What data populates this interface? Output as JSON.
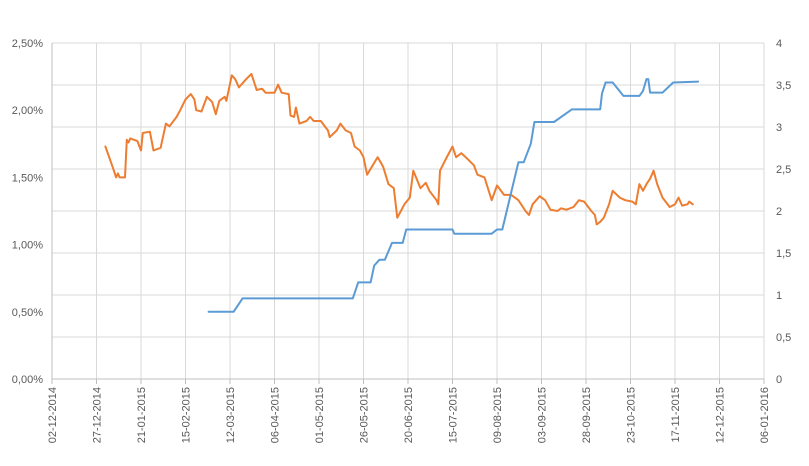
{
  "chart_data": {
    "type": "line",
    "title": "",
    "xlabel": "",
    "ylabel_left": "",
    "ylabel_right": "",
    "grid": true,
    "legend": "none",
    "x_range": [
      "2014-12-02",
      "2016-01-06"
    ],
    "y_left_range": [
      0,
      2.5
    ],
    "y_right_range": [
      0,
      4
    ],
    "x_ticks": [
      "02-12-2014",
      "27-12-2014",
      "21-01-2015",
      "15-02-2015",
      "12-03-2015",
      "06-04-2015",
      "01-05-2015",
      "26-05-2015",
      "20-06-2015",
      "15-07-2015",
      "09-08-2015",
      "03-09-2015",
      "28-09-2015",
      "23-10-2015",
      "17-11-2015",
      "12-12-2015",
      "06-01-2016"
    ],
    "y_left_ticks": [
      "0,00%",
      "0,50%",
      "1,00%",
      "1,50%",
      "2,00%",
      "2,50%"
    ],
    "y_left_tick_values": [
      0,
      0.5,
      1.0,
      1.5,
      2.0,
      2.5
    ],
    "y_right_ticks": [
      "0",
      "0,5",
      "1",
      "1,5",
      "2",
      "2,5",
      "3",
      "3,5",
      "4"
    ],
    "y_right_tick_values": [
      0,
      0.5,
      1,
      1.5,
      2,
      2.5,
      3,
      3.5,
      4
    ],
    "colors": {
      "orange": "#ED7D31",
      "blue": "#5B9BD5",
      "grid": "#D9D9D9",
      "axis": "#BFBFBF"
    },
    "series": [
      {
        "axis": "left",
        "color": "#ED7D31",
        "points": [
          [
            "2015-01-01",
            1.73
          ],
          [
            "2015-01-05",
            1.58
          ],
          [
            "2015-01-07",
            1.5
          ],
          [
            "2015-01-08",
            1.53
          ],
          [
            "2015-01-09",
            1.5
          ],
          [
            "2015-01-12",
            1.5
          ],
          [
            "2015-01-13",
            1.78
          ],
          [
            "2015-01-14",
            1.76
          ],
          [
            "2015-01-15",
            1.79
          ],
          [
            "2015-01-19",
            1.77
          ],
          [
            "2015-01-21",
            1.7
          ],
          [
            "2015-01-22",
            1.83
          ],
          [
            "2015-01-26",
            1.84
          ],
          [
            "2015-01-28",
            1.7
          ],
          [
            "2015-02-01",
            1.72
          ],
          [
            "2015-02-04",
            1.9
          ],
          [
            "2015-02-06",
            1.88
          ],
          [
            "2015-02-10",
            1.95
          ],
          [
            "2015-02-12",
            2.0
          ],
          [
            "2015-02-15",
            2.08
          ],
          [
            "2015-02-18",
            2.12
          ],
          [
            "2015-02-20",
            2.08
          ],
          [
            "2015-02-21",
            2.0
          ],
          [
            "2015-02-24",
            1.99
          ],
          [
            "2015-02-27",
            2.1
          ],
          [
            "2015-03-02",
            2.06
          ],
          [
            "2015-03-04",
            1.97
          ],
          [
            "2015-03-06",
            2.07
          ],
          [
            "2015-03-09",
            2.1
          ],
          [
            "2015-03-10",
            2.07
          ],
          [
            "2015-03-13",
            2.26
          ],
          [
            "2015-03-15",
            2.23
          ],
          [
            "2015-03-17",
            2.17
          ],
          [
            "2015-03-19",
            2.2
          ],
          [
            "2015-03-21",
            2.23
          ],
          [
            "2015-03-24",
            2.27
          ],
          [
            "2015-03-27",
            2.15
          ],
          [
            "2015-03-30",
            2.16
          ],
          [
            "2015-04-01",
            2.13
          ],
          [
            "2015-04-06",
            2.13
          ],
          [
            "2015-04-08",
            2.19
          ],
          [
            "2015-04-10",
            2.13
          ],
          [
            "2015-04-14",
            2.12
          ],
          [
            "2015-04-15",
            1.96
          ],
          [
            "2015-04-17",
            1.95
          ],
          [
            "2015-04-18",
            2.02
          ],
          [
            "2015-04-20",
            1.9
          ],
          [
            "2015-04-24",
            1.92
          ],
          [
            "2015-04-26",
            1.95
          ],
          [
            "2015-04-28",
            1.92
          ],
          [
            "2015-05-02",
            1.92
          ],
          [
            "2015-05-06",
            1.85
          ],
          [
            "2015-05-07",
            1.8
          ],
          [
            "2015-05-11",
            1.85
          ],
          [
            "2015-05-13",
            1.9
          ],
          [
            "2015-05-16",
            1.85
          ],
          [
            "2015-05-19",
            1.83
          ],
          [
            "2015-05-21",
            1.73
          ],
          [
            "2015-05-24",
            1.7
          ],
          [
            "2015-05-26",
            1.65
          ],
          [
            "2015-05-28",
            1.52
          ],
          [
            "2015-06-02",
            1.63
          ],
          [
            "2015-06-03",
            1.65
          ],
          [
            "2015-06-06",
            1.58
          ],
          [
            "2015-06-09",
            1.45
          ],
          [
            "2015-06-12",
            1.42
          ],
          [
            "2015-06-14",
            1.2
          ],
          [
            "2015-06-16",
            1.25
          ],
          [
            "2015-06-18",
            1.3
          ],
          [
            "2015-06-21",
            1.35
          ],
          [
            "2015-06-23",
            1.55
          ],
          [
            "2015-06-27",
            1.42
          ],
          [
            "2015-06-30",
            1.46
          ],
          [
            "2015-07-02",
            1.4
          ],
          [
            "2015-07-06",
            1.33
          ],
          [
            "2015-07-07",
            1.3
          ],
          [
            "2015-07-08",
            1.55
          ],
          [
            "2015-07-11",
            1.63
          ],
          [
            "2015-07-15",
            1.73
          ],
          [
            "2015-07-17",
            1.65
          ],
          [
            "2015-07-20",
            1.68
          ],
          [
            "2015-07-24",
            1.63
          ],
          [
            "2015-07-27",
            1.59
          ],
          [
            "2015-07-29",
            1.52
          ],
          [
            "2015-08-02",
            1.5
          ],
          [
            "2015-08-06",
            1.33
          ],
          [
            "2015-08-09",
            1.44
          ],
          [
            "2015-08-13",
            1.37
          ],
          [
            "2015-08-17",
            1.37
          ],
          [
            "2015-08-21",
            1.33
          ],
          [
            "2015-08-25",
            1.25
          ],
          [
            "2015-08-27",
            1.22
          ],
          [
            "2015-08-29",
            1.3
          ],
          [
            "2015-09-02",
            1.36
          ],
          [
            "2015-09-05",
            1.33
          ],
          [
            "2015-09-08",
            1.26
          ],
          [
            "2015-09-12",
            1.25
          ],
          [
            "2015-09-14",
            1.27
          ],
          [
            "2015-09-17",
            1.26
          ],
          [
            "2015-09-21",
            1.28
          ],
          [
            "2015-09-24",
            1.33
          ],
          [
            "2015-09-27",
            1.32
          ],
          [
            "2015-10-01",
            1.25
          ],
          [
            "2015-10-03",
            1.22
          ],
          [
            "2015-10-04",
            1.15
          ],
          [
            "2015-10-06",
            1.17
          ],
          [
            "2015-10-08",
            1.2
          ],
          [
            "2015-10-11",
            1.3
          ],
          [
            "2015-10-13",
            1.4
          ],
          [
            "2015-10-17",
            1.35
          ],
          [
            "2015-10-20",
            1.33
          ],
          [
            "2015-10-24",
            1.32
          ],
          [
            "2015-10-26",
            1.3
          ],
          [
            "2015-10-28",
            1.45
          ],
          [
            "2015-10-30",
            1.4
          ],
          [
            "2015-11-01",
            1.45
          ],
          [
            "2015-11-03",
            1.49
          ],
          [
            "2015-11-05",
            1.55
          ],
          [
            "2015-11-07",
            1.45
          ],
          [
            "2015-11-10",
            1.35
          ],
          [
            "2015-11-14",
            1.28
          ],
          [
            "2015-11-17",
            1.3
          ],
          [
            "2015-11-19",
            1.35
          ],
          [
            "2015-11-21",
            1.29
          ],
          [
            "2015-11-24",
            1.3
          ],
          [
            "2015-11-25",
            1.32
          ],
          [
            "2015-11-27",
            1.3
          ]
        ]
      },
      {
        "axis": "right",
        "color": "#5B9BD5",
        "points": [
          [
            "2015-02-28",
            0.8
          ],
          [
            "2015-03-14",
            0.8
          ],
          [
            "2015-03-19",
            0.96
          ],
          [
            "2015-05-20",
            0.96
          ],
          [
            "2015-05-23",
            1.15
          ],
          [
            "2015-05-30",
            1.15
          ],
          [
            "2015-06-01",
            1.35
          ],
          [
            "2015-06-04",
            1.42
          ],
          [
            "2015-06-07",
            1.42
          ],
          [
            "2015-06-11",
            1.62
          ],
          [
            "2015-06-17",
            1.62
          ],
          [
            "2015-06-19",
            1.78
          ],
          [
            "2015-07-15",
            1.78
          ],
          [
            "2015-07-16",
            1.73
          ],
          [
            "2015-08-06",
            1.73
          ],
          [
            "2015-08-09",
            1.78
          ],
          [
            "2015-08-12",
            1.78
          ],
          [
            "2015-08-21",
            2.58
          ],
          [
            "2015-08-24",
            2.58
          ],
          [
            "2015-08-28",
            2.8
          ],
          [
            "2015-08-30",
            3.06
          ],
          [
            "2015-09-10",
            3.06
          ],
          [
            "2015-09-20",
            3.21
          ],
          [
            "2015-10-06",
            3.21
          ],
          [
            "2015-10-07",
            3.4
          ],
          [
            "2015-10-09",
            3.53
          ],
          [
            "2015-10-13",
            3.53
          ],
          [
            "2015-10-19",
            3.37
          ],
          [
            "2015-10-28",
            3.37
          ],
          [
            "2015-10-30",
            3.43
          ],
          [
            "2015-11-01",
            3.57
          ],
          [
            "2015-11-02",
            3.57
          ],
          [
            "2015-11-03",
            3.41
          ],
          [
            "2015-11-10",
            3.41
          ],
          [
            "2015-11-16",
            3.53
          ],
          [
            "2015-11-30",
            3.54
          ]
        ]
      }
    ]
  }
}
